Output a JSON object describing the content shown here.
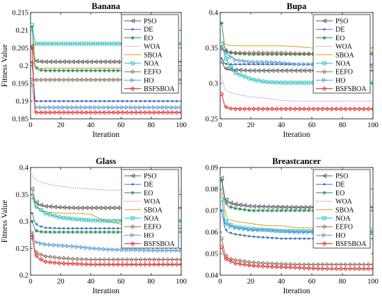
{
  "chart_data": [
    {
      "type": "line",
      "title": "Banana",
      "xlabel": "Iteration",
      "ylabel": "Fitness Value",
      "xlim": [
        0,
        100
      ],
      "ylim": [
        0.185,
        0.215
      ],
      "xticks": [
        "0",
        "20",
        "40",
        "60",
        "80",
        "100"
      ],
      "yticks": [
        "0.185",
        "0.19",
        "0.195",
        "0.2",
        "0.205",
        "0.21",
        "0.215"
      ],
      "legend_position": "top-right",
      "x": [
        1,
        3,
        5,
        10,
        20,
        30,
        40,
        50,
        60,
        70,
        80,
        90,
        100
      ],
      "series": [
        {
          "name": "PSO",
          "color": "#5a5a5a",
          "marker": "triangle-left",
          "values": [
            0.2055,
            0.2015,
            0.2012,
            0.2011,
            0.2011,
            0.2011,
            0.2011,
            0.2011,
            0.2011,
            0.2011,
            0.2011,
            0.2011,
            0.2011
          ]
        },
        {
          "name": "DE",
          "color": "#4472c4",
          "marker": "dot",
          "values": [
            0.201,
            0.19,
            0.19,
            0.19,
            0.19,
            0.19,
            0.19,
            0.19,
            0.19,
            0.19,
            0.19,
            0.19,
            0.19
          ]
        },
        {
          "name": "EO",
          "color": "#2e8b57",
          "marker": "asterisk",
          "values": [
            0.211,
            0.2,
            0.1988,
            0.1986,
            0.1986,
            0.1986,
            0.1986,
            0.1986,
            0.1986,
            0.1986,
            0.1986,
            0.1986,
            0.1986
          ]
        },
        {
          "name": "WOA",
          "color": "#b070d8",
          "marker": "none",
          "values": [
            0.202,
            0.1995,
            0.1993,
            0.1993,
            0.1993,
            0.1993,
            0.1993,
            0.1993,
            0.1993,
            0.1993,
            0.1993,
            0.1993,
            0.1993
          ]
        },
        {
          "name": "SBOA",
          "color": "#d4a017",
          "marker": "none",
          "values": [
            0.2065,
            0.1995,
            0.1993,
            0.1993,
            0.1993,
            0.1993,
            0.1993,
            0.1993,
            0.1993,
            0.1993,
            0.1993,
            0.1993,
            0.1993
          ]
        },
        {
          "name": "NOA",
          "color": "#17b8b8",
          "marker": "square",
          "values": [
            0.2115,
            0.2062,
            0.2062,
            0.2062,
            0.2062,
            0.2062,
            0.2062,
            0.2062,
            0.2062,
            0.2062,
            0.2062,
            0.2062,
            0.2062
          ]
        },
        {
          "name": "EEFO",
          "color": "#8c6b58",
          "marker": "diamond",
          "values": [
            0.196,
            0.196,
            0.196,
            0.196,
            0.196,
            0.196,
            0.196,
            0.196,
            0.196,
            0.196,
            0.196,
            0.196,
            0.196
          ]
        },
        {
          "name": "HO",
          "color": "#5b9bd5",
          "marker": "triangle-right",
          "values": [
            0.1945,
            0.1883,
            0.1882,
            0.1882,
            0.1882,
            0.1882,
            0.1882,
            0.1882,
            0.1882,
            0.1882,
            0.1882,
            0.1882,
            0.1882
          ]
        },
        {
          "name": "BSFSBOA",
          "color": "#e8211f",
          "marker": "diamond",
          "values": [
            0.205,
            0.1868,
            0.1868,
            0.1868,
            0.1868,
            0.1868,
            0.1868,
            0.1868,
            0.1868,
            0.1868,
            0.1868,
            0.1868,
            0.1868
          ]
        }
      ]
    },
    {
      "type": "line",
      "title": "Bupa",
      "xlabel": "Iteration",
      "ylabel": "",
      "xlim": [
        0,
        100
      ],
      "ylim": [
        0.25,
        0.4
      ],
      "xticks": [
        "0",
        "20",
        "40",
        "60",
        "80",
        "100"
      ],
      "yticks": [
        "0.25",
        "0.3",
        "0.35",
        "0.4"
      ],
      "legend_position": "top-right",
      "x": [
        1,
        3,
        5,
        10,
        20,
        30,
        40,
        50,
        60,
        70,
        80,
        90,
        100
      ],
      "series": [
        {
          "name": "PSO",
          "color": "#5a5a5a",
          "marker": "triangle-left",
          "values": [
            0.33,
            0.322,
            0.32,
            0.319,
            0.318,
            0.318,
            0.318,
            0.318,
            0.318,
            0.318,
            0.318,
            0.318,
            0.318
          ]
        },
        {
          "name": "DE",
          "color": "#4472c4",
          "marker": "dot",
          "values": [
            0.335,
            0.328,
            0.327,
            0.327,
            0.327,
            0.327,
            0.327,
            0.327,
            0.327,
            0.327,
            0.327,
            0.327,
            0.327
          ]
        },
        {
          "name": "EO",
          "color": "#2e8b57",
          "marker": "asterisk",
          "values": [
            0.385,
            0.35,
            0.344,
            0.342,
            0.341,
            0.341,
            0.341,
            0.341,
            0.341,
            0.341,
            0.341,
            0.341,
            0.341
          ]
        },
        {
          "name": "WOA",
          "color": "#b070d8",
          "marker": "none",
          "values": [
            0.31,
            0.292,
            0.288,
            0.285,
            0.281,
            0.279,
            0.276,
            0.275,
            0.275,
            0.275,
            0.275,
            0.275,
            0.275
          ]
        },
        {
          "name": "SBOA",
          "color": "#d4a017",
          "marker": "none",
          "values": [
            0.36,
            0.356,
            0.354,
            0.353,
            0.353,
            0.353,
            0.353,
            0.352,
            0.35,
            0.347,
            0.345,
            0.345,
            0.345
          ]
        },
        {
          "name": "NOA",
          "color": "#17b8b8",
          "marker": "square",
          "values": [
            0.355,
            0.34,
            0.33,
            0.315,
            0.306,
            0.302,
            0.301,
            0.301,
            0.301,
            0.301,
            0.301,
            0.301,
            0.301
          ]
        },
        {
          "name": "EEFO",
          "color": "#8c6b58",
          "marker": "diamond",
          "values": [
            0.35,
            0.346,
            0.344,
            0.343,
            0.343,
            0.343,
            0.343,
            0.342,
            0.342,
            0.342,
            0.342,
            0.342,
            0.342
          ]
        },
        {
          "name": "HO",
          "color": "#5b9bd5",
          "marker": "triangle-right",
          "values": [
            0.348,
            0.345,
            0.34,
            0.333,
            0.33,
            0.33,
            0.329,
            0.327,
            0.327,
            0.327,
            0.325,
            0.325,
            0.325
          ]
        },
        {
          "name": "BSFSBOA",
          "color": "#e8211f",
          "marker": "diamond",
          "values": [
            0.285,
            0.268,
            0.265,
            0.264,
            0.264,
            0.264,
            0.264,
            0.264,
            0.264,
            0.264,
            0.264,
            0.264,
            0.264
          ]
        }
      ]
    },
    {
      "type": "line",
      "title": "Glass",
      "xlabel": "Iteration",
      "ylabel": "Fitness Value",
      "xlim": [
        0,
        100
      ],
      "ylim": [
        0.2,
        0.4
      ],
      "xticks": [
        "0",
        "20",
        "40",
        "60",
        "80",
        "100"
      ],
      "yticks": [
        "0.2",
        "0.25",
        "0.3",
        "0.35",
        "0.4"
      ],
      "legend_position": "top-right",
      "x": [
        1,
        3,
        5,
        10,
        20,
        30,
        40,
        50,
        60,
        70,
        80,
        90,
        100
      ],
      "series": [
        {
          "name": "PSO",
          "color": "#5a5a5a",
          "marker": "triangle-left",
          "values": [
            0.36,
            0.338,
            0.332,
            0.328,
            0.326,
            0.325,
            0.325,
            0.325,
            0.325,
            0.325,
            0.325,
            0.325,
            0.325
          ]
        },
        {
          "name": "DE",
          "color": "#4472c4",
          "marker": "dot",
          "values": [
            0.315,
            0.297,
            0.292,
            0.288,
            0.287,
            0.287,
            0.287,
            0.287,
            0.287,
            0.287,
            0.287,
            0.287,
            0.287
          ]
        },
        {
          "name": "EO",
          "color": "#2e8b57",
          "marker": "asterisk",
          "values": [
            0.3,
            0.284,
            0.281,
            0.28,
            0.28,
            0.28,
            0.28,
            0.28,
            0.28,
            0.28,
            0.28,
            0.28,
            0.28
          ]
        },
        {
          "name": "WOA",
          "color": "#b070d8",
          "marker": "none",
          "values": [
            0.385,
            0.378,
            0.375,
            0.37,
            0.365,
            0.362,
            0.36,
            0.358,
            0.358,
            0.357,
            0.357,
            0.357,
            0.357
          ]
        },
        {
          "name": "SBOA",
          "color": "#d4a017",
          "marker": "none",
          "values": [
            0.36,
            0.33,
            0.323,
            0.318,
            0.315,
            0.315,
            0.313,
            0.3,
            0.295,
            0.292,
            0.292,
            0.292,
            0.292
          ]
        },
        {
          "name": "NOA",
          "color": "#17b8b8",
          "marker": "square",
          "values": [
            0.345,
            0.33,
            0.325,
            0.315,
            0.307,
            0.304,
            0.302,
            0.301,
            0.301,
            0.301,
            0.301,
            0.301,
            0.301
          ]
        },
        {
          "name": "EEFO",
          "color": "#8c6b58",
          "marker": "diamond",
          "values": [
            0.27,
            0.245,
            0.24,
            0.235,
            0.232,
            0.23,
            0.229,
            0.229,
            0.229,
            0.229,
            0.229,
            0.229,
            0.229
          ]
        },
        {
          "name": "HO",
          "color": "#5b9bd5",
          "marker": "triangle-right",
          "values": [
            0.28,
            0.262,
            0.26,
            0.257,
            0.255,
            0.253,
            0.25,
            0.248,
            0.247,
            0.247,
            0.246,
            0.246,
            0.246
          ]
        },
        {
          "name": "BSFSBOA",
          "color": "#e8211f",
          "marker": "diamond",
          "values": [
            0.275,
            0.24,
            0.232,
            0.225,
            0.222,
            0.221,
            0.22,
            0.22,
            0.22,
            0.22,
            0.22,
            0.22,
            0.22
          ]
        }
      ]
    },
    {
      "type": "line",
      "title": "Breastcancer",
      "xlabel": "Iteration",
      "ylabel": "",
      "xlim": [
        0,
        100
      ],
      "ylim": [
        0.04,
        0.09
      ],
      "xticks": [
        "0",
        "20",
        "40",
        "60",
        "80",
        "100"
      ],
      "yticks": [
        "0.04",
        "0.05",
        "0.06",
        "0.07",
        "0.08",
        "0.09"
      ],
      "legend_position": "top-right",
      "x": [
        1,
        3,
        5,
        10,
        20,
        30,
        40,
        50,
        60,
        70,
        80,
        90,
        100
      ],
      "series": [
        {
          "name": "PSO",
          "color": "#5a5a5a",
          "marker": "triangle-left",
          "values": [
            0.085,
            0.076,
            0.074,
            0.073,
            0.072,
            0.0718,
            0.0716,
            0.0715,
            0.0715,
            0.0715,
            0.0715,
            0.0715,
            0.0715
          ]
        },
        {
          "name": "DE",
          "color": "#4472c4",
          "marker": "dot",
          "values": [
            0.07,
            0.062,
            0.06,
            0.059,
            0.058,
            0.0575,
            0.057,
            0.057,
            0.057,
            0.057,
            0.057,
            0.057,
            0.057
          ]
        },
        {
          "name": "EO",
          "color": "#2e8b57",
          "marker": "asterisk",
          "values": [
            0.084,
            0.075,
            0.072,
            0.071,
            0.07,
            0.07,
            0.07,
            0.07,
            0.07,
            0.07,
            0.07,
            0.07,
            0.07
          ]
        },
        {
          "name": "WOA",
          "color": "#b070d8",
          "marker": "none",
          "values": [
            0.078,
            0.074,
            0.073,
            0.072,
            0.072,
            0.072,
            0.072,
            0.072,
            0.072,
            0.072,
            0.072,
            0.072,
            0.072
          ]
        },
        {
          "name": "SBOA",
          "color": "#d4a017",
          "marker": "none",
          "values": [
            0.08,
            0.07,
            0.066,
            0.065,
            0.064,
            0.063,
            0.063,
            0.062,
            0.062,
            0.062,
            0.062,
            0.062,
            0.062
          ]
        },
        {
          "name": "NOA",
          "color": "#17b8b8",
          "marker": "square",
          "values": [
            0.075,
            0.066,
            0.064,
            0.0625,
            0.0615,
            0.061,
            0.0605,
            0.0605,
            0.0605,
            0.0605,
            0.0605,
            0.0605,
            0.0605
          ]
        },
        {
          "name": "EEFO",
          "color": "#8c6b58",
          "marker": "diamond",
          "values": [
            0.057,
            0.05,
            0.048,
            0.047,
            0.046,
            0.0455,
            0.0452,
            0.045,
            0.045,
            0.045,
            0.045,
            0.045,
            0.045
          ]
        },
        {
          "name": "HO",
          "color": "#5b9bd5",
          "marker": "triangle-right",
          "values": [
            0.07,
            0.064,
            0.063,
            0.062,
            0.061,
            0.061,
            0.0605,
            0.06,
            0.06,
            0.06,
            0.06,
            0.0595,
            0.0595
          ]
        },
        {
          "name": "BSFSBOA",
          "color": "#e8211f",
          "marker": "diamond",
          "values": [
            0.053,
            0.048,
            0.047,
            0.0455,
            0.0445,
            0.044,
            0.0438,
            0.0435,
            0.0432,
            0.043,
            0.043,
            0.043,
            0.043
          ]
        }
      ]
    }
  ]
}
